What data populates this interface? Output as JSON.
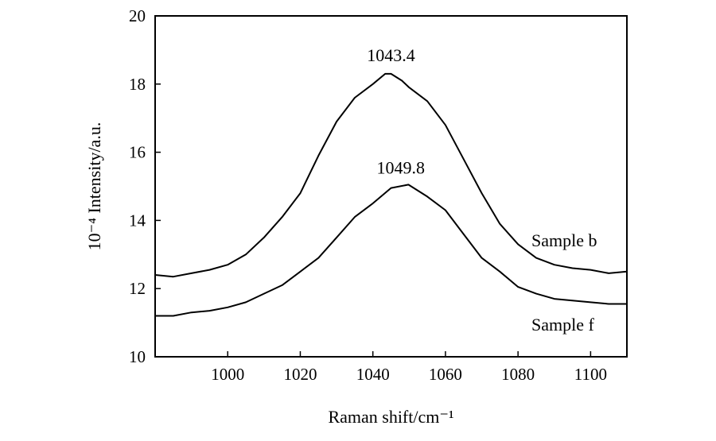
{
  "chart_data": {
    "type": "line",
    "xlabel": "Raman shift/cm⁻¹",
    "ylabel": "10⁻⁴ Intensity/a.u.",
    "xlim": [
      980,
      1110
    ],
    "ylim": [
      10,
      20
    ],
    "x_ticks": [
      1000,
      1020,
      1040,
      1060,
      1080,
      1100
    ],
    "y_ticks": [
      10,
      12,
      14,
      16,
      18,
      20
    ],
    "grid": false,
    "annotations": [
      {
        "text": "1043.4",
        "x": 1045,
        "y": 18.3
      },
      {
        "text": "1049.8",
        "x": 1049,
        "y": 15.05
      }
    ],
    "series": [
      {
        "name": "Sample b",
        "x": [
          980,
          985,
          990,
          995,
          1000,
          1005,
          1010,
          1015,
          1020,
          1025,
          1030,
          1035,
          1040,
          1043.4,
          1045,
          1048,
          1050,
          1055,
          1060,
          1065,
          1070,
          1075,
          1080,
          1085,
          1090,
          1095,
          1100,
          1105,
          1110
        ],
        "values": [
          12.4,
          12.35,
          12.45,
          12.55,
          12.7,
          13.0,
          13.5,
          14.1,
          14.8,
          15.9,
          16.9,
          17.6,
          18.0,
          18.3,
          18.3,
          18.1,
          17.9,
          17.5,
          16.8,
          15.8,
          14.8,
          13.9,
          13.3,
          12.9,
          12.7,
          12.6,
          12.55,
          12.45,
          12.5
        ]
      },
      {
        "name": "Sample f",
        "x": [
          980,
          985,
          990,
          995,
          1000,
          1005,
          1010,
          1015,
          1020,
          1025,
          1030,
          1035,
          1040,
          1045,
          1049.8,
          1055,
          1060,
          1065,
          1070,
          1075,
          1080,
          1085,
          1090,
          1095,
          1100,
          1105,
          1110
        ],
        "values": [
          11.2,
          11.2,
          11.3,
          11.35,
          11.45,
          11.6,
          11.85,
          12.1,
          12.5,
          12.9,
          13.5,
          14.1,
          14.5,
          14.95,
          15.05,
          14.7,
          14.3,
          13.6,
          12.9,
          12.5,
          12.05,
          11.85,
          11.7,
          11.65,
          11.6,
          11.55,
          11.55
        ]
      }
    ]
  }
}
